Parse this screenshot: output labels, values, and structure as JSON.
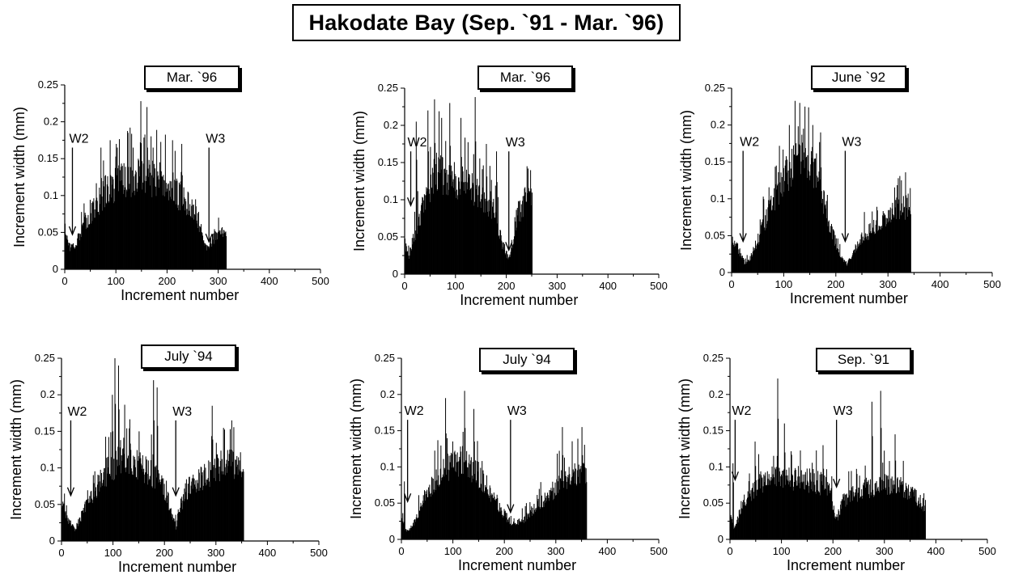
{
  "title": "Hakodate Bay (Sep. `91 - Mar. `96)",
  "chart_data": [
    {
      "type": "bar",
      "label": "Mar. `96",
      "xlabel": "Increment number",
      "ylabel": "Increment width (mm)",
      "xlim": [
        0,
        500
      ],
      "ylim": [
        0,
        0.25
      ],
      "xticks": [
        "0",
        "100",
        "200",
        "300",
        "400",
        "500"
      ],
      "yticks": [
        "0",
        "0.05",
        "0.1",
        "0.15",
        "0.2",
        "0.25"
      ],
      "n": 316,
      "profile": [
        [
          0,
          0.055
        ],
        [
          10,
          0.03
        ],
        [
          20,
          0.035
        ],
        [
          35,
          0.06
        ],
        [
          55,
          0.08
        ],
        [
          80,
          0.11
        ],
        [
          110,
          0.12
        ],
        [
          150,
          0.13
        ],
        [
          190,
          0.12
        ],
        [
          225,
          0.1
        ],
        [
          255,
          0.08
        ],
        [
          275,
          0.03
        ],
        [
          295,
          0.045
        ],
        [
          316,
          0.05
        ]
      ],
      "spikes": [
        [
          70,
          0.165
        ],
        [
          100,
          0.17
        ],
        [
          123,
          0.185
        ],
        [
          133,
          0.165
        ],
        [
          148,
          0.228
        ],
        [
          160,
          0.22
        ],
        [
          172,
          0.165
        ],
        [
          210,
          0.175
        ],
        [
          228,
          0.17
        ],
        [
          300,
          0.07
        ]
      ],
      "markers": [
        {
          "label": "W2",
          "x": 15,
          "y": 0.045
        },
        {
          "label": "W3",
          "x": 282,
          "y": 0.035
        }
      ]
    },
    {
      "type": "bar",
      "label": "Mar. `96",
      "xlabel": "Increment number",
      "ylabel": "Increment width (mm)",
      "xlim": [
        0,
        500
      ],
      "ylim": [
        0,
        0.25
      ],
      "xticks": [
        "0",
        "100",
        "200",
        "300",
        "400",
        "500"
      ],
      "yticks": [
        "0",
        "0.05",
        "0.1",
        "0.15",
        "0.2",
        "0.25"
      ],
      "n": 251,
      "profile": [
        [
          0,
          0.04
        ],
        [
          8,
          0.025
        ],
        [
          25,
          0.07
        ],
        [
          60,
          0.14
        ],
        [
          100,
          0.13
        ],
        [
          140,
          0.11
        ],
        [
          175,
          0.09
        ],
        [
          192,
          0.04
        ],
        [
          205,
          0.02
        ],
        [
          220,
          0.08
        ],
        [
          235,
          0.1
        ],
        [
          251,
          0.11
        ]
      ],
      "spikes": [
        [
          22,
          0.205
        ],
        [
          45,
          0.22
        ],
        [
          58,
          0.235
        ],
        [
          72,
          0.21
        ],
        [
          88,
          0.23
        ],
        [
          110,
          0.21
        ],
        [
          138,
          0.238
        ],
        [
          160,
          0.175
        ],
        [
          180,
          0.165
        ],
        [
          240,
          0.145
        ]
      ],
      "markers": [
        {
          "label": "W2",
          "x": 12,
          "y": 0.09
        },
        {
          "label": "W3",
          "x": 205,
          "y": 0.03
        }
      ]
    },
    {
      "type": "bar",
      "label": "June `92",
      "xlabel": "Increment number",
      "ylabel": "Increment width (mm)",
      "xlim": [
        0,
        500
      ],
      "ylim": [
        0,
        0.25
      ],
      "xticks": [
        "0",
        "100",
        "200",
        "300",
        "400",
        "500"
      ],
      "yticks": [
        "0",
        "0.05",
        "0.1",
        "0.15",
        "0.2",
        "0.25"
      ],
      "n": 344,
      "profile": [
        [
          0,
          0.045
        ],
        [
          10,
          0.035
        ],
        [
          25,
          0.012
        ],
        [
          45,
          0.03
        ],
        [
          75,
          0.1
        ],
        [
          110,
          0.14
        ],
        [
          140,
          0.17
        ],
        [
          165,
          0.13
        ],
        [
          185,
          0.07
        ],
        [
          205,
          0.03
        ],
        [
          220,
          0.01
        ],
        [
          250,
          0.05
        ],
        [
          290,
          0.07
        ],
        [
          325,
          0.09
        ],
        [
          344,
          0.09
        ]
      ],
      "spikes": [
        [
          85,
          0.145
        ],
        [
          110,
          0.2
        ],
        [
          130,
          0.23
        ],
        [
          140,
          0.225
        ],
        [
          155,
          0.2
        ],
        [
          170,
          0.19
        ],
        [
          325,
          0.125
        ]
      ],
      "markers": [
        {
          "label": "W2",
          "x": 22,
          "y": 0.04
        },
        {
          "label": "W3",
          "x": 218,
          "y": 0.04
        }
      ]
    },
    {
      "type": "bar",
      "label": "July `94",
      "xlabel": "Increment number",
      "ylabel": "Increment width (mm)",
      "xlim": [
        0,
        500
      ],
      "ylim": [
        0,
        0.25
      ],
      "xticks": [
        "0",
        "100",
        "200",
        "300",
        "400",
        "500"
      ],
      "yticks": [
        "0",
        "0.05",
        "0.1",
        "0.15",
        "0.2",
        "0.25"
      ],
      "n": 354,
      "profile": [
        [
          0,
          0.05
        ],
        [
          12,
          0.03
        ],
        [
          25,
          0.015
        ],
        [
          45,
          0.045
        ],
        [
          80,
          0.09
        ],
        [
          120,
          0.12
        ],
        [
          160,
          0.1
        ],
        [
          195,
          0.08
        ],
        [
          210,
          0.05
        ],
        [
          222,
          0.02
        ],
        [
          240,
          0.07
        ],
        [
          280,
          0.09
        ],
        [
          320,
          0.11
        ],
        [
          354,
          0.1
        ]
      ],
      "spikes": [
        [
          98,
          0.2
        ],
        [
          103,
          0.25
        ],
        [
          110,
          0.24
        ],
        [
          150,
          0.15
        ],
        [
          178,
          0.22
        ],
        [
          185,
          0.21
        ],
        [
          292,
          0.185
        ],
        [
          330,
          0.165
        ]
      ],
      "markers": [
        {
          "label": "W2",
          "x": 18,
          "y": 0.06
        },
        {
          "label": "W3",
          "x": 222,
          "y": 0.06
        }
      ]
    },
    {
      "type": "bar",
      "label": "July `94",
      "xlabel": "Increment number",
      "ylabel": "Increment width (mm)",
      "xlim": [
        0,
        500
      ],
      "ylim": [
        0,
        0.25
      ],
      "xticks": [
        "0",
        "100",
        "200",
        "300",
        "400",
        "500"
      ],
      "yticks": [
        "0",
        "0.05",
        "0.1",
        "0.15",
        "0.2",
        "0.25"
      ],
      "n": 360,
      "profile": [
        [
          0,
          0.03
        ],
        [
          10,
          0.01
        ],
        [
          25,
          0.025
        ],
        [
          50,
          0.07
        ],
        [
          85,
          0.1
        ],
        [
          125,
          0.11
        ],
        [
          160,
          0.08
        ],
        [
          195,
          0.04
        ],
        [
          215,
          0.02
        ],
        [
          240,
          0.03
        ],
        [
          270,
          0.05
        ],
        [
          310,
          0.08
        ],
        [
          340,
          0.09
        ],
        [
          360,
          0.1
        ]
      ],
      "spikes": [
        [
          5,
          0.08
        ],
        [
          85,
          0.195
        ],
        [
          122,
          0.205
        ],
        [
          140,
          0.18
        ],
        [
          312,
          0.155
        ],
        [
          350,
          0.155
        ]
      ],
      "markers": [
        {
          "label": "W2",
          "x": 12,
          "y": 0.05
        },
        {
          "label": "W3",
          "x": 212,
          "y": 0.035
        }
      ]
    },
    {
      "type": "bar",
      "label": "Sep. `91",
      "xlabel": "Increment number",
      "ylabel": "Increment width (mm)",
      "xlim": [
        0,
        500
      ],
      "ylim": [
        0,
        0.25
      ],
      "xticks": [
        "0",
        "100",
        "200",
        "300",
        "400",
        "500"
      ],
      "yticks": [
        "0",
        "0.05",
        "0.1",
        "0.15",
        "0.2",
        "0.25"
      ],
      "n": 380,
      "profile": [
        [
          0,
          0.03
        ],
        [
          8,
          0.015
        ],
        [
          25,
          0.05
        ],
        [
          60,
          0.08
        ],
        [
          90,
          0.09
        ],
        [
          130,
          0.085
        ],
        [
          170,
          0.08
        ],
        [
          195,
          0.07
        ],
        [
          205,
          0.025
        ],
        [
          220,
          0.055
        ],
        [
          260,
          0.07
        ],
        [
          300,
          0.08
        ],
        [
          340,
          0.07
        ],
        [
          380,
          0.045
        ]
      ],
      "spikes": [
        [
          5,
          0.105
        ],
        [
          48,
          0.135
        ],
        [
          92,
          0.222
        ],
        [
          105,
          0.16
        ],
        [
          180,
          0.13
        ],
        [
          275,
          0.19
        ],
        [
          292,
          0.205
        ],
        [
          320,
          0.145
        ]
      ],
      "markers": [
        {
          "label": "W2",
          "x": 10,
          "y": 0.08
        },
        {
          "label": "W3",
          "x": 207,
          "y": 0.07
        }
      ]
    }
  ]
}
